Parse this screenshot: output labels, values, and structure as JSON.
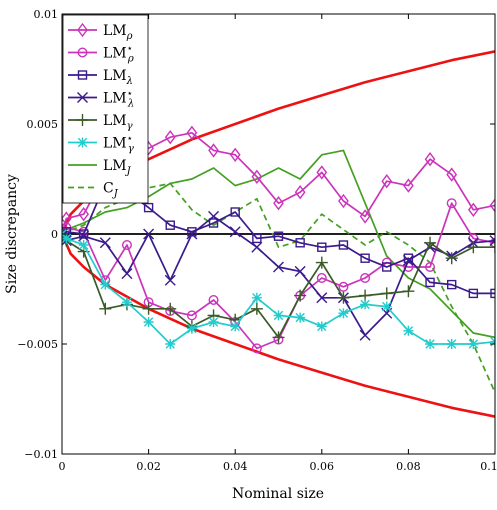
{
  "chart_data": {
    "type": "line",
    "xlabel": "Nominal size",
    "ylabel": "Size discrepancy",
    "xlim": [
      0,
      0.1
    ],
    "ylim": [
      -0.01,
      0.01
    ],
    "xticks": [
      0,
      0.02,
      0.04,
      0.06,
      0.08,
      0.1
    ],
    "xtick_labels": [
      "0",
      "0.02",
      "0.04",
      "0.06",
      "0.08",
      "0.1"
    ],
    "yticks": [
      -0.01,
      -0.005,
      0,
      0.005,
      0.01
    ],
    "ytick_labels": [
      "−0.01",
      "−0.005",
      "0",
      "0.005",
      "0.01"
    ],
    "grid": false,
    "legend_position": "top-left",
    "colors": {
      "lm_rho": "#cc33bb",
      "lm_lambda": "#3a1a8c",
      "lm_gamma": "#3a5a28",
      "lm_star_gamma": "#22cccc",
      "lm_j": "#44a022",
      "bounds": "#ee1111",
      "zero": "#000000"
    },
    "x": [
      0,
      0.001,
      0.005,
      0.01,
      0.015,
      0.02,
      0.025,
      0.03,
      0.035,
      0.04,
      0.045,
      0.05,
      0.055,
      0.06,
      0.065,
      0.07,
      0.075,
      0.08,
      0.085,
      0.09,
      0.095,
      0.1
    ],
    "series": [
      {
        "name": "LM",
        "sub": "ρ",
        "sup": "",
        "color": "#cc33bb",
        "dash": "",
        "marker": "diamond",
        "values": [
          0,
          0.0007,
          0.0009,
          0.0027,
          0.0033,
          0.0039,
          0.0044,
          0.0046,
          0.0038,
          0.0036,
          0.0026,
          0.0014,
          0.0019,
          0.0028,
          0.0015,
          0.0008,
          0.0024,
          0.0022,
          0.0034,
          0.0027,
          0.0011,
          0.0013
        ]
      },
      {
        "name": "LM",
        "sub": "ρ",
        "sup": "⋆",
        "color": "#cc33bb",
        "dash": "",
        "marker": "circle",
        "values": [
          0,
          0.0003,
          0.0001,
          -0.0021,
          -0.0005,
          -0.0031,
          -0.0035,
          -0.0037,
          -0.003,
          -0.004,
          -0.0052,
          -0.0048,
          -0.0028,
          -0.002,
          -0.0024,
          -0.002,
          -0.0013,
          -0.0015,
          -0.0015,
          0.0014,
          -0.0002,
          -0.0004
        ]
      },
      {
        "name": "LM",
        "sub": "λ",
        "sup": "",
        "color": "#3a1a8c",
        "dash": "",
        "marker": "square",
        "values": [
          0,
          0.0001,
          0,
          0.0023,
          0.0019,
          0.0012,
          0.0004,
          0.0001,
          0.0005,
          0.001,
          -0.0002,
          -0.0001,
          -0.0004,
          -0.0006,
          -0.0005,
          -0.0011,
          -0.0015,
          -0.0011,
          -0.0022,
          -0.0023,
          -0.0027,
          -0.0027
        ]
      },
      {
        "name": "LM",
        "sub": "λ",
        "sup": "⋆",
        "color": "#3a1a8c",
        "dash": "",
        "marker": "x",
        "values": [
          0,
          -0.0003,
          -0.0001,
          -0.0004,
          -0.0018,
          0,
          -0.0021,
          0,
          0.0008,
          0.0001,
          -0.0006,
          -0.0015,
          -0.0017,
          -0.0029,
          -0.0029,
          -0.0046,
          -0.0036,
          -0.0012,
          -0.0006,
          -0.001,
          -0.0004,
          -0.0003
        ]
      },
      {
        "name": "LM",
        "sub": "γ",
        "sup": "",
        "color": "#3a5a28",
        "dash": "",
        "marker": "plus",
        "values": [
          0,
          -0.0003,
          -0.0008,
          -0.0034,
          -0.0032,
          -0.0034,
          -0.0034,
          -0.0042,
          -0.0037,
          -0.0039,
          -0.0034,
          -0.0047,
          -0.0028,
          -0.0013,
          -0.0029,
          -0.0028,
          -0.0027,
          -0.0026,
          -0.0004,
          -0.0011,
          -0.0006,
          -0.0006
        ]
      },
      {
        "name": "LM",
        "sub": "γ",
        "sup": "⋆",
        "color": "#22cccc",
        "dash": "",
        "marker": "asterisk",
        "values": [
          0,
          -0.0002,
          -0.0005,
          -0.0023,
          -0.0031,
          -0.004,
          -0.005,
          -0.0043,
          -0.004,
          -0.0042,
          -0.0029,
          -0.0037,
          -0.0038,
          -0.0042,
          -0.0036,
          -0.0032,
          -0.0033,
          -0.0044,
          -0.005,
          -0.005,
          -0.005,
          -0.0049
        ]
      },
      {
        "name": "LM",
        "sub": "J",
        "sup": "",
        "color": "#44a022",
        "dash": "",
        "marker": "none",
        "values": [
          0,
          0.0002,
          0.0005,
          0.001,
          0.0012,
          0.0017,
          0.0023,
          0.0025,
          0.003,
          0.0022,
          0.0025,
          0.003,
          0.0025,
          0.0036,
          0.0038,
          0.0014,
          -0.001,
          -0.002,
          -0.0025,
          -0.0035,
          -0.0045,
          -0.0047
        ]
      },
      {
        "name": "C",
        "sub": "J",
        "sup": "",
        "color": "#44a022",
        "dash": "6,4",
        "marker": "none",
        "values": [
          0,
          0.0001,
          0.0004,
          0.0012,
          0.0016,
          0.0021,
          0.0023,
          0.0011,
          0.0004,
          0.001,
          0.0016,
          -0.0006,
          -0.0003,
          0.0009,
          0.0002,
          -0.0005,
          0.0001,
          -0.0005,
          -0.0013,
          -0.0033,
          -0.005,
          -0.0072
        ]
      }
    ],
    "reference_lines": {
      "zero": {
        "y": 0,
        "color": "#000000"
      },
      "upper_bound": {
        "color": "#ee1111",
        "x": [
          0,
          0.002,
          0.005,
          0.01,
          0.02,
          0.03,
          0.04,
          0.05,
          0.06,
          0.07,
          0.08,
          0.09,
          0.1
        ],
        "y": [
          0,
          0.0009,
          0.0015,
          0.0023,
          0.0034,
          0.0043,
          0.005,
          0.0057,
          0.0063,
          0.0069,
          0.0074,
          0.0079,
          0.0083
        ]
      },
      "lower_bound": {
        "color": "#ee1111",
        "x": [
          0,
          0.002,
          0.005,
          0.01,
          0.02,
          0.03,
          0.04,
          0.05,
          0.06,
          0.07,
          0.08,
          0.09,
          0.1
        ],
        "y": [
          0,
          -0.0009,
          -0.0015,
          -0.0023,
          -0.0034,
          -0.0043,
          -0.005,
          -0.0057,
          -0.0063,
          -0.0069,
          -0.0074,
          -0.0079,
          -0.0083
        ]
      }
    }
  }
}
